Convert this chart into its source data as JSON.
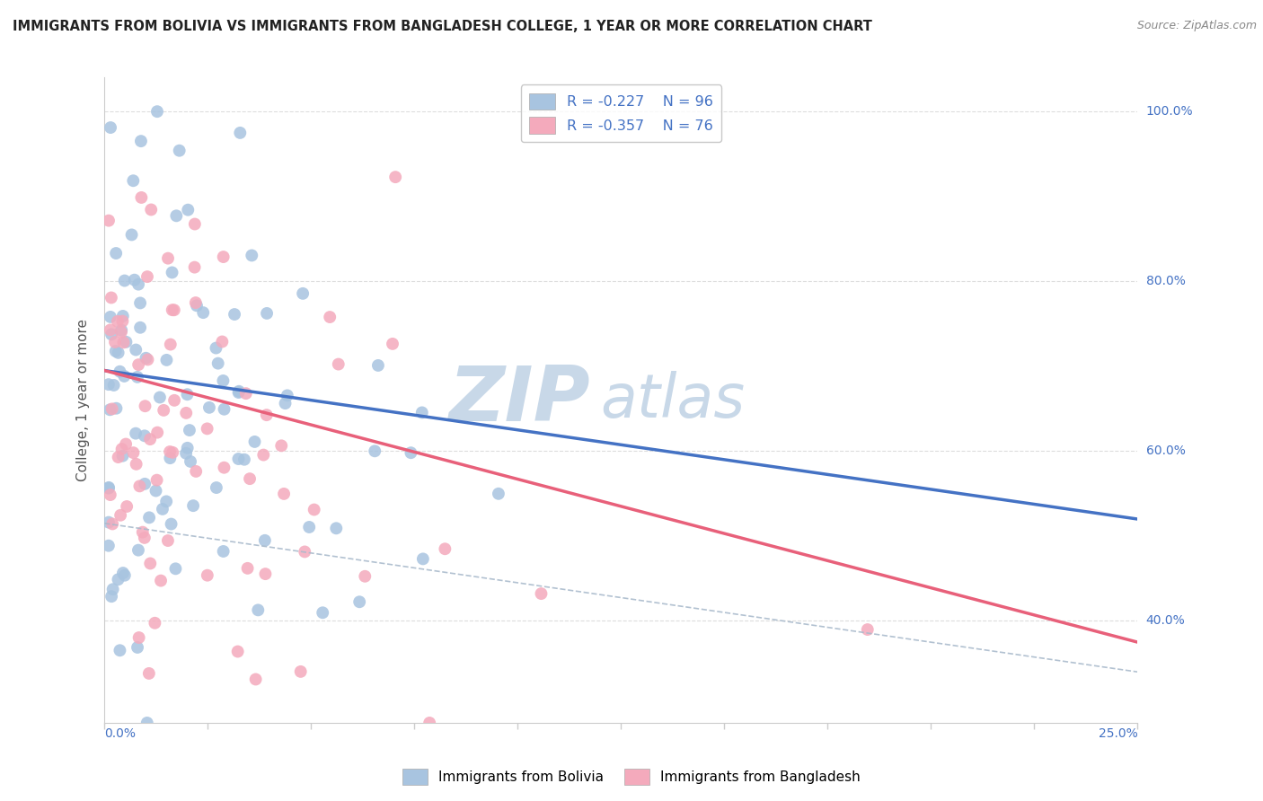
{
  "title": "IMMIGRANTS FROM BOLIVIA VS IMMIGRANTS FROM BANGLADESH COLLEGE, 1 YEAR OR MORE CORRELATION CHART",
  "source": "Source: ZipAtlas.com",
  "ylabel": "College, 1 year or more",
  "watermark_zip": "ZIP",
  "watermark_atlas": "atlas",
  "series": [
    {
      "label": "Immigrants from Bolivia",
      "R": -0.227,
      "N": 96,
      "color": "#A8C4E0",
      "line_color": "#4472C4"
    },
    {
      "label": "Immigrants from Bangladesh",
      "R": -0.357,
      "N": 76,
      "color": "#F4AABC",
      "line_color": "#E8607A"
    }
  ],
  "xlim": [
    0.0,
    0.25
  ],
  "ylim": [
    0.28,
    1.04
  ],
  "yticks": [
    0.4,
    0.6,
    0.8,
    1.0
  ],
  "ytick_labels": [
    "40.0%",
    "60.0%",
    "80.0%",
    "100.0%"
  ],
  "grid_color": "#DDDDDD",
  "background_color": "#FFFFFF",
  "title_color": "#222222",
  "source_color": "#888888",
  "axis_label_color": "#4472C4",
  "legend_R_color": "#CC3333",
  "legend_N_color": "#4472C4",
  "dashed_line_color": "#AABBCC"
}
